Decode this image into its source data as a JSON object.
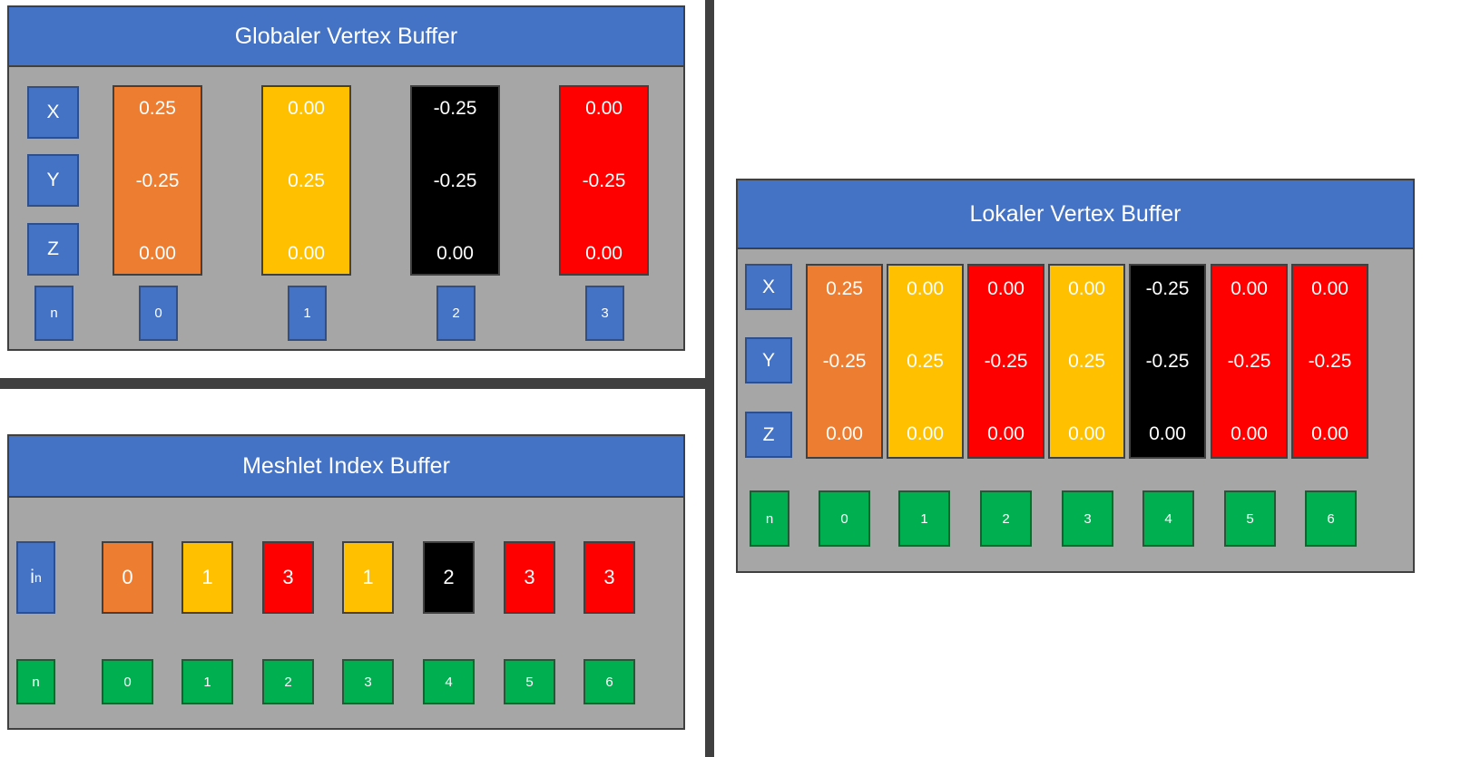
{
  "colors": {
    "orange": "#ed7d31",
    "yellow": "#ffc000",
    "black": "#000000",
    "red": "#ff0000",
    "blue": "#4472c4",
    "green": "#00b050",
    "panel_gray": "#a6a6a6"
  },
  "global_buffer": {
    "title": "Globaler Vertex Buffer",
    "axis_labels": [
      "X",
      "Y",
      "Z"
    ],
    "n_label": "n",
    "vertices": [
      {
        "index": "0",
        "x": "0.25",
        "y": "-0.25",
        "z": "0.00",
        "color": "orange"
      },
      {
        "index": "1",
        "x": "0.00",
        "y": "0.25",
        "z": "0.00",
        "color": "yellow"
      },
      {
        "index": "2",
        "x": "-0.25",
        "y": "-0.25",
        "z": "0.00",
        "color": "black"
      },
      {
        "index": "3",
        "x": "0.00",
        "y": "-0.25",
        "z": "0.00",
        "color": "red"
      }
    ]
  },
  "index_buffer": {
    "title": "Meshlet Index Buffer",
    "i_label": "i",
    "i_sub": "n",
    "n_label": "n",
    "entries": [
      {
        "value": "0",
        "n": "0",
        "color": "orange"
      },
      {
        "value": "1",
        "n": "1",
        "color": "yellow"
      },
      {
        "value": "3",
        "n": "2",
        "color": "red"
      },
      {
        "value": "1",
        "n": "3",
        "color": "yellow"
      },
      {
        "value": "2",
        "n": "4",
        "color": "black"
      },
      {
        "value": "3",
        "n": "5",
        "color": "red"
      },
      {
        "value": "3",
        "n": "6",
        "color": "red"
      }
    ]
  },
  "local_buffer": {
    "title": "Lokaler Vertex Buffer",
    "axis_labels": [
      "X",
      "Y",
      "Z"
    ],
    "n_label": "n",
    "vertices": [
      {
        "index": "0",
        "x": "0.25",
        "y": "-0.25",
        "z": "0.00",
        "color": "orange"
      },
      {
        "index": "1",
        "x": "0.00",
        "y": "0.25",
        "z": "0.00",
        "color": "yellow"
      },
      {
        "index": "2",
        "x": "0.00",
        "y": "-0.25",
        "z": "0.00",
        "color": "red"
      },
      {
        "index": "3",
        "x": "0.00",
        "y": "0.25",
        "z": "0.00",
        "color": "yellow"
      },
      {
        "index": "4",
        "x": "-0.25",
        "y": "-0.25",
        "z": "0.00",
        "color": "black"
      },
      {
        "index": "5",
        "x": "0.00",
        "y": "-0.25",
        "z": "0.00",
        "color": "red"
      },
      {
        "index": "6",
        "x": "0.00",
        "y": "-0.25",
        "z": "0.00",
        "color": "red"
      }
    ]
  }
}
